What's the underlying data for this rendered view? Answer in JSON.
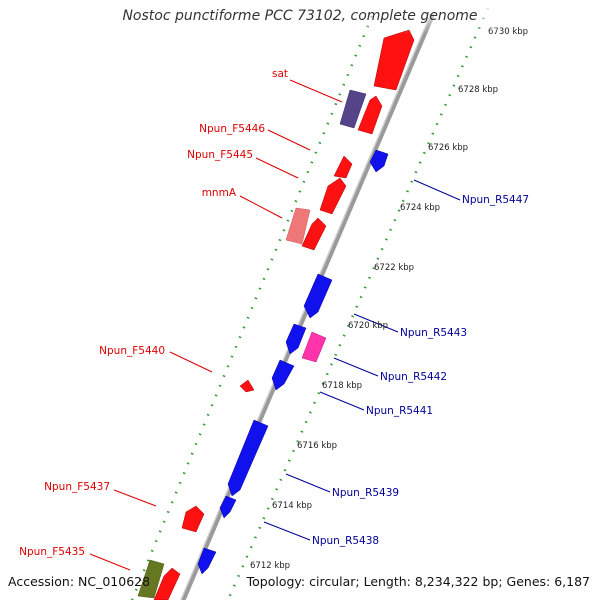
{
  "title": "Nostoc punctiforme PCC 73102, complete genome",
  "footer": {
    "accession": "Accession: NC_010628",
    "summary": "Topology: circular; Length: 8,234,322 bp; Genes: 6,187"
  },
  "ruler": {
    "unit": "kbp",
    "ticks": [
      {
        "label": "6712 kbp"
      },
      {
        "label": "6714 kbp"
      },
      {
        "label": "6716 kbp"
      },
      {
        "label": "6718 kbp"
      },
      {
        "label": "6720 kbp"
      },
      {
        "label": "6722 kbp"
      },
      {
        "label": "6724 kbp"
      },
      {
        "label": "6726 kbp"
      },
      {
        "label": "6728 kbp"
      },
      {
        "label": "6730 kbp"
      }
    ]
  },
  "colors": {
    "forward_label": "#dd0000",
    "reverse_label": "#000099",
    "cds_forward": "#ff1111",
    "cds_reverse": "#1111ee",
    "rrna": "#ee6677",
    "trna": "#ff33aa",
    "pseudo": "#554488",
    "other": "#667722",
    "backbone": "#9a9a9a",
    "ruler": "#339933"
  },
  "gene_labels": {
    "forward": [
      "sat",
      "Npun_F5446",
      "Npun_F5445",
      "mnmA",
      "Npun_F5440",
      "Npun_F5437",
      "Npun_F5435"
    ],
    "reverse": [
      "Npun_R5447",
      "Npun_R5443",
      "Npun_R5442",
      "Npun_R5441",
      "Npun_R5439",
      "Npun_R5438"
    ]
  }
}
